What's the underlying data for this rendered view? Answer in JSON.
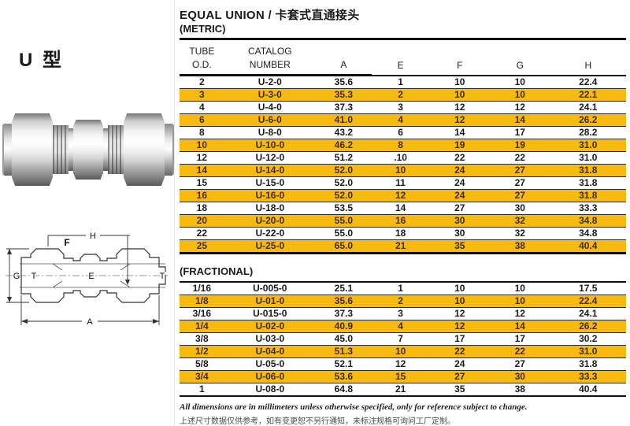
{
  "left_panel": {
    "type_label": "U 型",
    "diagram": {
      "label_h": "H",
      "label_f": "F",
      "label_g": "G",
      "label_t_left": "T",
      "label_e": "E",
      "label_t_right": "T",
      "label_a": "A"
    }
  },
  "header": {
    "title": "EQUAL UNION / 卡套式直通接头",
    "subtitle": "(METRIC)"
  },
  "columns": {
    "tube_line1": "TUBE",
    "tube_line2": "O.D.",
    "catalog_line1": "CATALOG",
    "catalog_line2": "NUMBER",
    "a": "A",
    "e": "E",
    "f": "F",
    "g": "G",
    "h": "H"
  },
  "metric_table": {
    "rows": [
      [
        "2",
        "U-2-0",
        "35.6",
        "1",
        "10",
        "10",
        "22.4"
      ],
      [
        "3",
        "U-3-0",
        "35.3",
        "2",
        "10",
        "10",
        "22.1"
      ],
      [
        "4",
        "U-4-0",
        "37.3",
        "3",
        "12",
        "12",
        "24.1"
      ],
      [
        "6",
        "U-6-0",
        "41.0",
        "4",
        "12",
        "14",
        "26.2"
      ],
      [
        "8",
        "U-8-0",
        "43.2",
        "6",
        "14",
        "17",
        "28.2"
      ],
      [
        "10",
        "U-10-0",
        "46.2",
        "8",
        "19",
        "19",
        "31.0"
      ],
      [
        "12",
        "U-12-0",
        "51.2",
        ".10",
        "22",
        "22",
        "31.0"
      ],
      [
        "14",
        "U-14-0",
        "52.0",
        "10",
        "24",
        "27",
        "31.8"
      ],
      [
        "15",
        "U-15-0",
        "52.0",
        "11",
        "24",
        "27",
        "31.8"
      ],
      [
        "16",
        "U-16-0",
        "52.0",
        "12",
        "24",
        "27",
        "31.8"
      ],
      [
        "18",
        "U-18-0",
        "53.5",
        "14",
        "27",
        "30",
        "33.3"
      ],
      [
        "20",
        "U-20-0",
        "55.0",
        "16",
        "30",
        "32",
        "34.8"
      ],
      [
        "22",
        "U-22-0",
        "55.0",
        "18",
        "30",
        "32",
        "34.8"
      ],
      [
        "25",
        "U-25-0",
        "65.0",
        "21",
        "35",
        "38",
        "40.4"
      ]
    ]
  },
  "fractional_table": {
    "heading": "(FRACTIONAL)",
    "rows": [
      [
        "1/16",
        "U-005-0",
        "25.1",
        "1",
        "10",
        "10",
        "17.5"
      ],
      [
        "1/8",
        "U-01-0",
        "35.6",
        "2",
        "10",
        "10",
        "22.4"
      ],
      [
        "3/16",
        "U-015-0",
        "37.3",
        "3",
        "12",
        "12",
        "24.1"
      ],
      [
        "1/4",
        "U-02-0",
        "40.9",
        "4",
        "12",
        "14",
        "26.2"
      ],
      [
        "3/8",
        "U-03-0",
        "45.0",
        "7",
        "17",
        "17",
        "30.2"
      ],
      [
        "1/2",
        "U-04-0",
        "51.3",
        "10",
        "22",
        "22",
        "31.0"
      ],
      [
        "5/8",
        "U-05-0",
        "52.1",
        "12",
        "24",
        "27",
        "31.8"
      ],
      [
        "3/4",
        "U-06-0",
        "53.6",
        "15",
        "27",
        "30",
        "33.3"
      ],
      [
        "1",
        "U-08-0",
        "64.8",
        "21",
        "35",
        "38",
        "40.4"
      ]
    ]
  },
  "footnotes": {
    "english": "All dimensions are in millimeters unless otherwise specified, only for reference subject to change.",
    "chinese": "上述尺寸数据仅供参考，如有变更恕不另行通知，未标注规格可询问工厂定制。"
  },
  "colors": {
    "highlight_row": "#F8BA0F",
    "highlight_text": "#3E2D05",
    "rule": "#111111"
  }
}
